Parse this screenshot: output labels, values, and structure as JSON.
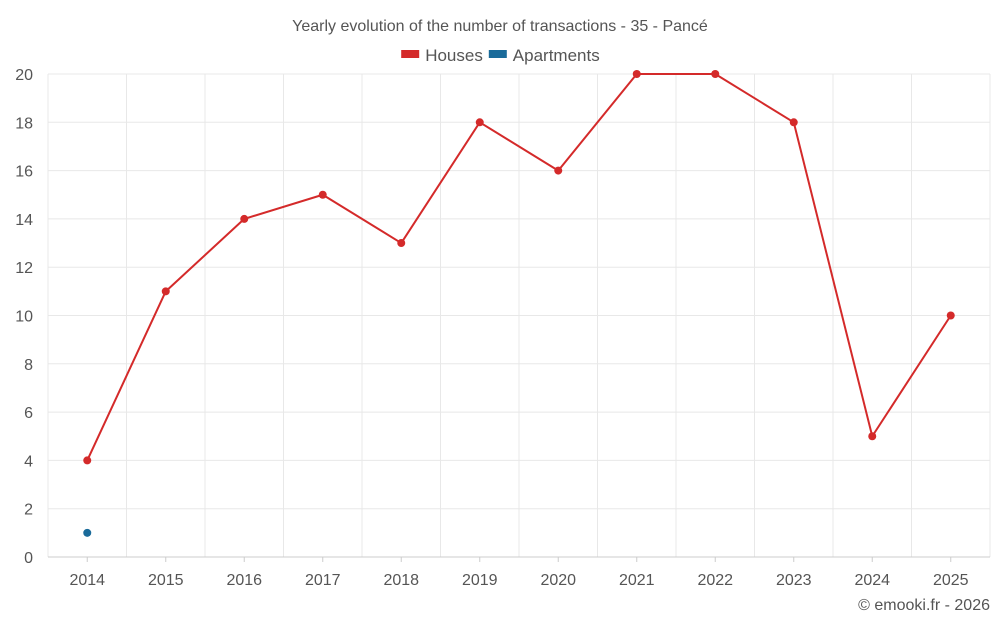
{
  "chart_data": {
    "type": "line",
    "title": "Yearly evolution of the number of transactions - 35 - Pancé",
    "categories": [
      "2014",
      "2015",
      "2016",
      "2017",
      "2018",
      "2019",
      "2020",
      "2021",
      "2022",
      "2023",
      "2024",
      "2025"
    ],
    "series": [
      {
        "name": "Houses",
        "color": "#d42a2a",
        "values": [
          4,
          11,
          14,
          15,
          13,
          18,
          16,
          20,
          20,
          18,
          5,
          10
        ]
      },
      {
        "name": "Apartments",
        "color": "#1a6b9a",
        "values": [
          1,
          null,
          null,
          null,
          null,
          null,
          null,
          null,
          null,
          null,
          null,
          null
        ]
      }
    ],
    "ylim": [
      0,
      20
    ],
    "yticks": [
      0,
      2,
      4,
      6,
      8,
      10,
      12,
      14,
      16,
      18,
      20
    ],
    "xlabel": "",
    "ylabel": "",
    "legend": "top-center",
    "grid": true
  },
  "credit": "© emooki.fr - 2026"
}
